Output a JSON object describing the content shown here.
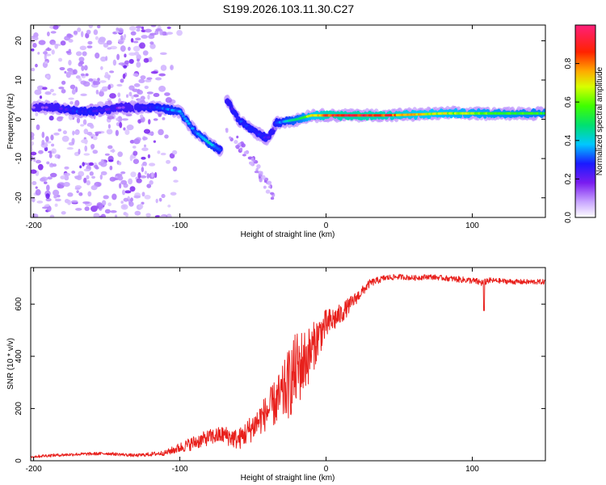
{
  "figure_title": "S199.2026.103.11.30.C27",
  "colors": {
    "snr_line": "#e8201c",
    "speckle": "#8a2be2"
  },
  "colorbar": {
    "label": "Normalized spectral amplitude",
    "ticks": [
      "0.0",
      "0.2",
      "0.4",
      "0.6",
      "0.8"
    ],
    "tick_values": [
      0.0,
      0.2,
      0.4,
      0.6,
      0.8
    ],
    "range": [
      0,
      1
    ]
  },
  "chart_data": [
    {
      "type": "heatmap",
      "title": "",
      "xlabel": "Height of straight line (km)",
      "ylabel": "Frequency (Hz)",
      "xlim": [
        -202,
        150
      ],
      "ylim": [
        -25,
        24
      ],
      "xticks": [
        -200,
        -100,
        0,
        100
      ],
      "xtick_labels": [
        "-200",
        "-100",
        "0",
        "100"
      ],
      "yticks": [
        -20,
        -10,
        0,
        10,
        20
      ],
      "ytick_labels": [
        "-20",
        "-10",
        "0",
        "10",
        "20"
      ],
      "colormap": "white-purple-blue-cyan-green-yellow-red-magenta",
      "ridges": [
        {
          "name": "ridge-left",
          "x": [
            -200,
            -185,
            -170,
            -160,
            -150,
            -140,
            -125
          ],
          "y": [
            3,
            3,
            2,
            2,
            2.5,
            3,
            3
          ],
          "amplitude": [
            0.12,
            0.18,
            0.3,
            0.28,
            0.22,
            0.16,
            0.14
          ]
        },
        {
          "name": "ridge-mid-left",
          "x": [
            -130,
            -115,
            -100,
            -90,
            -80,
            -72
          ],
          "y": [
            3,
            3,
            2,
            -3,
            -6,
            -8
          ],
          "amplitude": [
            0.2,
            0.32,
            0.38,
            0.35,
            0.42,
            0.3
          ]
        },
        {
          "name": "ridge-mid",
          "x": [
            -68,
            -60,
            -50,
            -40,
            -35
          ],
          "y": [
            5,
            0,
            -3,
            -5,
            -2
          ],
          "amplitude": [
            0.22,
            0.3,
            0.3,
            0.26,
            0.24
          ]
        },
        {
          "name": "ridge-right",
          "x": [
            -35,
            -20,
            -10,
            0,
            20,
            40,
            60,
            80,
            100,
            120,
            150
          ],
          "y": [
            -1,
            0,
            1,
            1,
            1,
            1,
            1.2,
            1.5,
            1.5,
            1.5,
            1.5
          ],
          "amplitude": [
            0.3,
            0.5,
            0.7,
            0.9,
            0.95,
            0.9,
            0.75,
            0.7,
            0.65,
            0.6,
            0.55
          ]
        }
      ],
      "scatter_streak": {
        "x": [
          -68,
          -55,
          -45,
          -35
        ],
        "y": [
          -3,
          -8,
          -14,
          -20
        ]
      }
    },
    {
      "type": "line",
      "title": "",
      "xlabel": "Height of straight line (km)",
      "ylabel": "SNR (10 * v/v)",
      "xlim": [
        -202,
        150
      ],
      "ylim": [
        0,
        740
      ],
      "xticks": [
        -200,
        -100,
        0,
        100
      ],
      "xtick_labels": [
        "-200",
        "-100",
        "0",
        "100"
      ],
      "yticks": [
        0,
        200,
        400,
        600
      ],
      "ytick_labels": [
        "0",
        "200",
        "400",
        "600"
      ],
      "series": [
        {
          "name": "SNR",
          "x": [
            -202,
            -190,
            -170,
            -150,
            -130,
            -110,
            -100,
            -90,
            -80,
            -70,
            -60,
            -50,
            -40,
            -30,
            -25,
            -20,
            -15,
            -10,
            -5,
            0,
            10,
            20,
            30,
            40,
            50,
            60,
            70,
            80,
            90,
            100,
            108,
            110,
            115,
            130,
            150
          ],
          "y": [
            15,
            20,
            25,
            28,
            20,
            30,
            50,
            70,
            90,
            100,
            80,
            130,
            190,
            250,
            300,
            350,
            380,
            420,
            480,
            520,
            560,
            620,
            680,
            700,
            705,
            700,
            705,
            700,
            695,
            690,
            680,
            690,
            690,
            685,
            685
          ],
          "noise_amplitude": [
            5,
            6,
            6,
            6,
            6,
            10,
            20,
            28,
            30,
            35,
            40,
            55,
            70,
            110,
            140,
            150,
            130,
            100,
            80,
            60,
            40,
            25,
            15,
            12,
            10,
            10,
            10,
            10,
            12,
            12,
            15,
            12,
            10,
            10,
            10
          ]
        }
      ]
    }
  ]
}
